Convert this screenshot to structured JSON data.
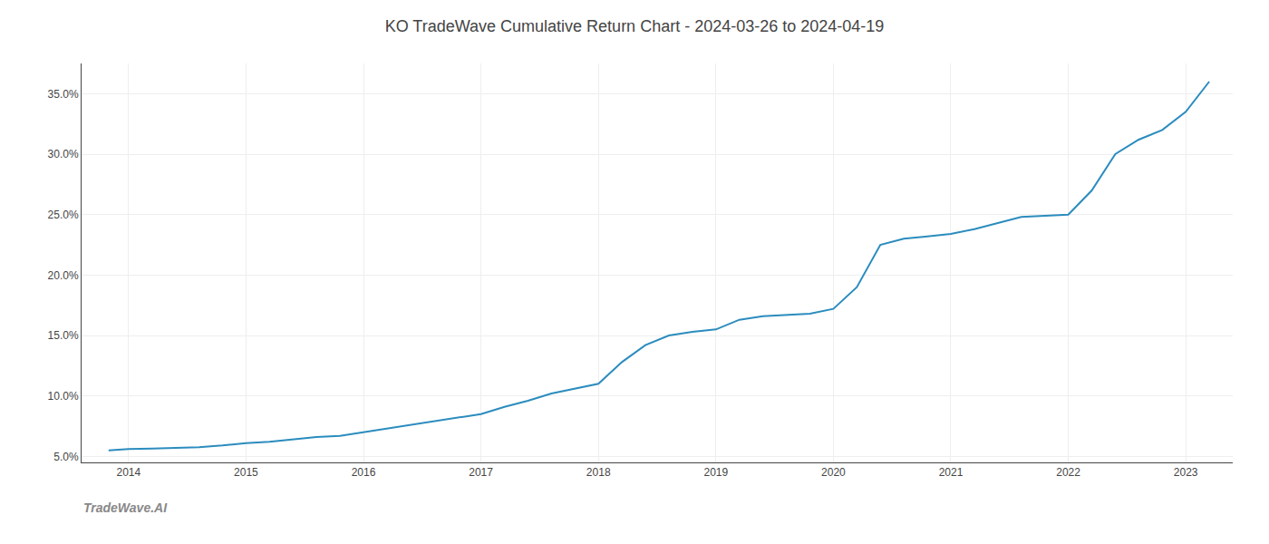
{
  "chart_data": {
    "type": "line",
    "title": "KO TradeWave Cumulative Return Chart - 2024-03-26 to 2024-04-19",
    "annotations": [
      "TradeWave.AI"
    ],
    "x": [
      2013.83,
      2014.0,
      2014.2,
      2014.4,
      2014.6,
      2014.8,
      2015.0,
      2015.2,
      2015.4,
      2015.6,
      2015.8,
      2016.0,
      2016.2,
      2016.4,
      2016.6,
      2016.8,
      2017.0,
      2017.2,
      2017.4,
      2017.6,
      2017.8,
      2018.0,
      2018.2,
      2018.4,
      2018.6,
      2018.8,
      2019.0,
      2019.2,
      2019.4,
      2019.6,
      2019.8,
      2020.0,
      2020.2,
      2020.4,
      2020.6,
      2020.8,
      2021.0,
      2021.2,
      2021.4,
      2021.6,
      2021.8,
      2022.0,
      2022.2,
      2022.4,
      2022.6,
      2022.8,
      2023.0,
      2023.2
    ],
    "values": [
      5.5,
      5.6,
      5.65,
      5.7,
      5.75,
      5.9,
      6.1,
      6.2,
      6.4,
      6.6,
      6.7,
      7.0,
      7.3,
      7.6,
      7.9,
      8.2,
      8.5,
      9.1,
      9.6,
      10.2,
      10.6,
      11.0,
      12.8,
      14.2,
      15.0,
      15.3,
      15.5,
      16.3,
      16.6,
      16.7,
      16.8,
      17.2,
      19.0,
      22.5,
      23.0,
      23.2,
      23.4,
      23.8,
      24.3,
      24.8,
      24.9,
      25.0,
      27.0,
      30.0,
      31.2,
      32.0,
      33.5,
      36.0
    ],
    "color": "#2b8cbe",
    "xlim": [
      2013.6,
      2023.4
    ],
    "xticks": [
      2014,
      2015,
      2016,
      2017,
      2018,
      2019,
      2020,
      2021,
      2022,
      2023
    ],
    "ylim": [
      4.5,
      37.5
    ],
    "yticks": [
      {
        "value": 5.0,
        "label": "5.0%"
      },
      {
        "value": 10.0,
        "label": "10.0%"
      },
      {
        "value": 15.0,
        "label": "15.0%"
      },
      {
        "value": 20.0,
        "label": "20.0%"
      },
      {
        "value": 25.0,
        "label": "25.0%"
      },
      {
        "value": 30.0,
        "label": "30.0%"
      },
      {
        "value": 35.0,
        "label": "35.0%"
      }
    ],
    "grid": true
  }
}
